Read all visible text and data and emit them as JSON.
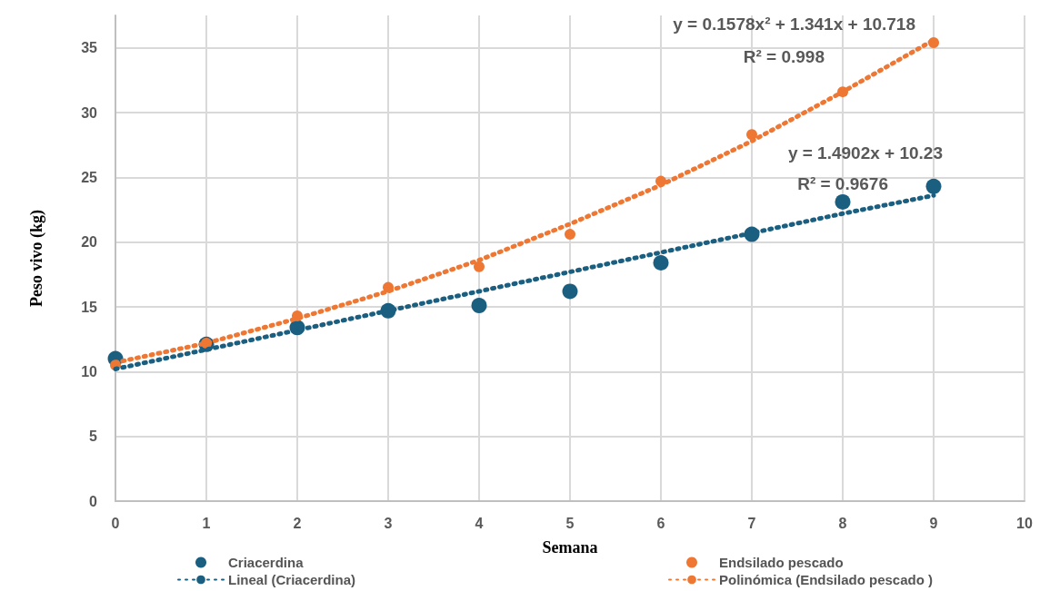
{
  "chart_data": {
    "type": "scatter",
    "xlabel": "Semana",
    "ylabel": "Peso vivo (kg)",
    "xlim": [
      0,
      10
    ],
    "xticks": [
      0,
      1,
      2,
      3,
      4,
      5,
      6,
      7,
      8,
      9,
      10
    ],
    "ylim": [
      0,
      37.5
    ],
    "yticks": [
      0,
      5,
      10,
      15,
      20,
      25,
      30,
      35
    ],
    "grid": true,
    "legend": "bottom",
    "marker": "circle",
    "series": [
      {
        "name": "Criacerdina",
        "color": "#1a5e80",
        "x": [
          0,
          1,
          2,
          3,
          4,
          5,
          6,
          7,
          8,
          9
        ],
        "values": [
          11.0,
          12.1,
          13.4,
          14.7,
          15.1,
          16.2,
          18.4,
          20.6,
          23.1,
          24.3
        ]
      },
      {
        "name": "Endsilado pescado",
        "color": "#ee7733",
        "x": [
          0,
          1,
          2,
          3,
          4,
          5,
          6,
          7,
          8,
          9
        ],
        "values": [
          10.5,
          12.2,
          14.3,
          16.5,
          18.1,
          20.6,
          24.7,
          28.3,
          31.6,
          35.4
        ]
      },
      {
        "name": "Lineal (Criacerdina)",
        "type": "line",
        "line_style": "dotted",
        "marker": "none",
        "color": "#1a5e80",
        "x": [
          0,
          1,
          2,
          3,
          4,
          5,
          6,
          7,
          8,
          9
        ],
        "values": [
          10.2,
          11.7,
          13.2,
          14.7,
          16.2,
          17.7,
          19.2,
          20.7,
          22.2,
          23.6
        ]
      },
      {
        "name": "Polinómica (Endsilado pescado )",
        "type": "line",
        "line_style": "dotted",
        "marker": "none",
        "color": "#ee7733",
        "x": [
          0,
          1,
          2,
          3,
          4,
          5,
          6,
          7,
          8,
          9
        ],
        "values": [
          10.7,
          12.2,
          14.1,
          16.2,
          18.6,
          21.4,
          24.4,
          27.8,
          31.6,
          35.6
        ]
      }
    ],
    "annotations": [
      "y = 0.1578x² + 1.341x + 10.718",
      "R² = 0.998",
      "y = 1.4902x + 10.23",
      "R² = 0.9676"
    ]
  }
}
